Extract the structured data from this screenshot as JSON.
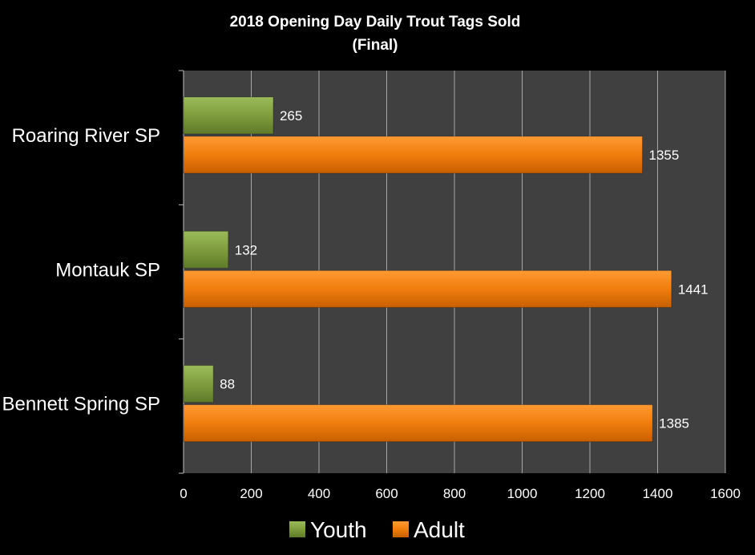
{
  "chart_data": {
    "type": "bar",
    "orientation": "horizontal",
    "title": "2018 Opening Day Daily Trout Tags Sold",
    "subtitle": "(Final)",
    "categories": [
      "Roaring River SP",
      "Montauk SP",
      "Bennett Spring SP"
    ],
    "series": [
      {
        "name": "Youth",
        "values": [
          265,
          132,
          88
        ],
        "color": "#77933c"
      },
      {
        "name": "Adult",
        "values": [
          1355,
          1441,
          1385
        ],
        "color": "#f07d0e"
      }
    ],
    "xlim": [
      0,
      1600
    ],
    "xticks": [
      0,
      200,
      400,
      600,
      800,
      1000,
      1200,
      1400,
      1600
    ],
    "xlabel": "",
    "ylabel": "",
    "grid": true,
    "legend_position": "bottom",
    "plot_background": "#404040",
    "page_background": "#000000"
  }
}
